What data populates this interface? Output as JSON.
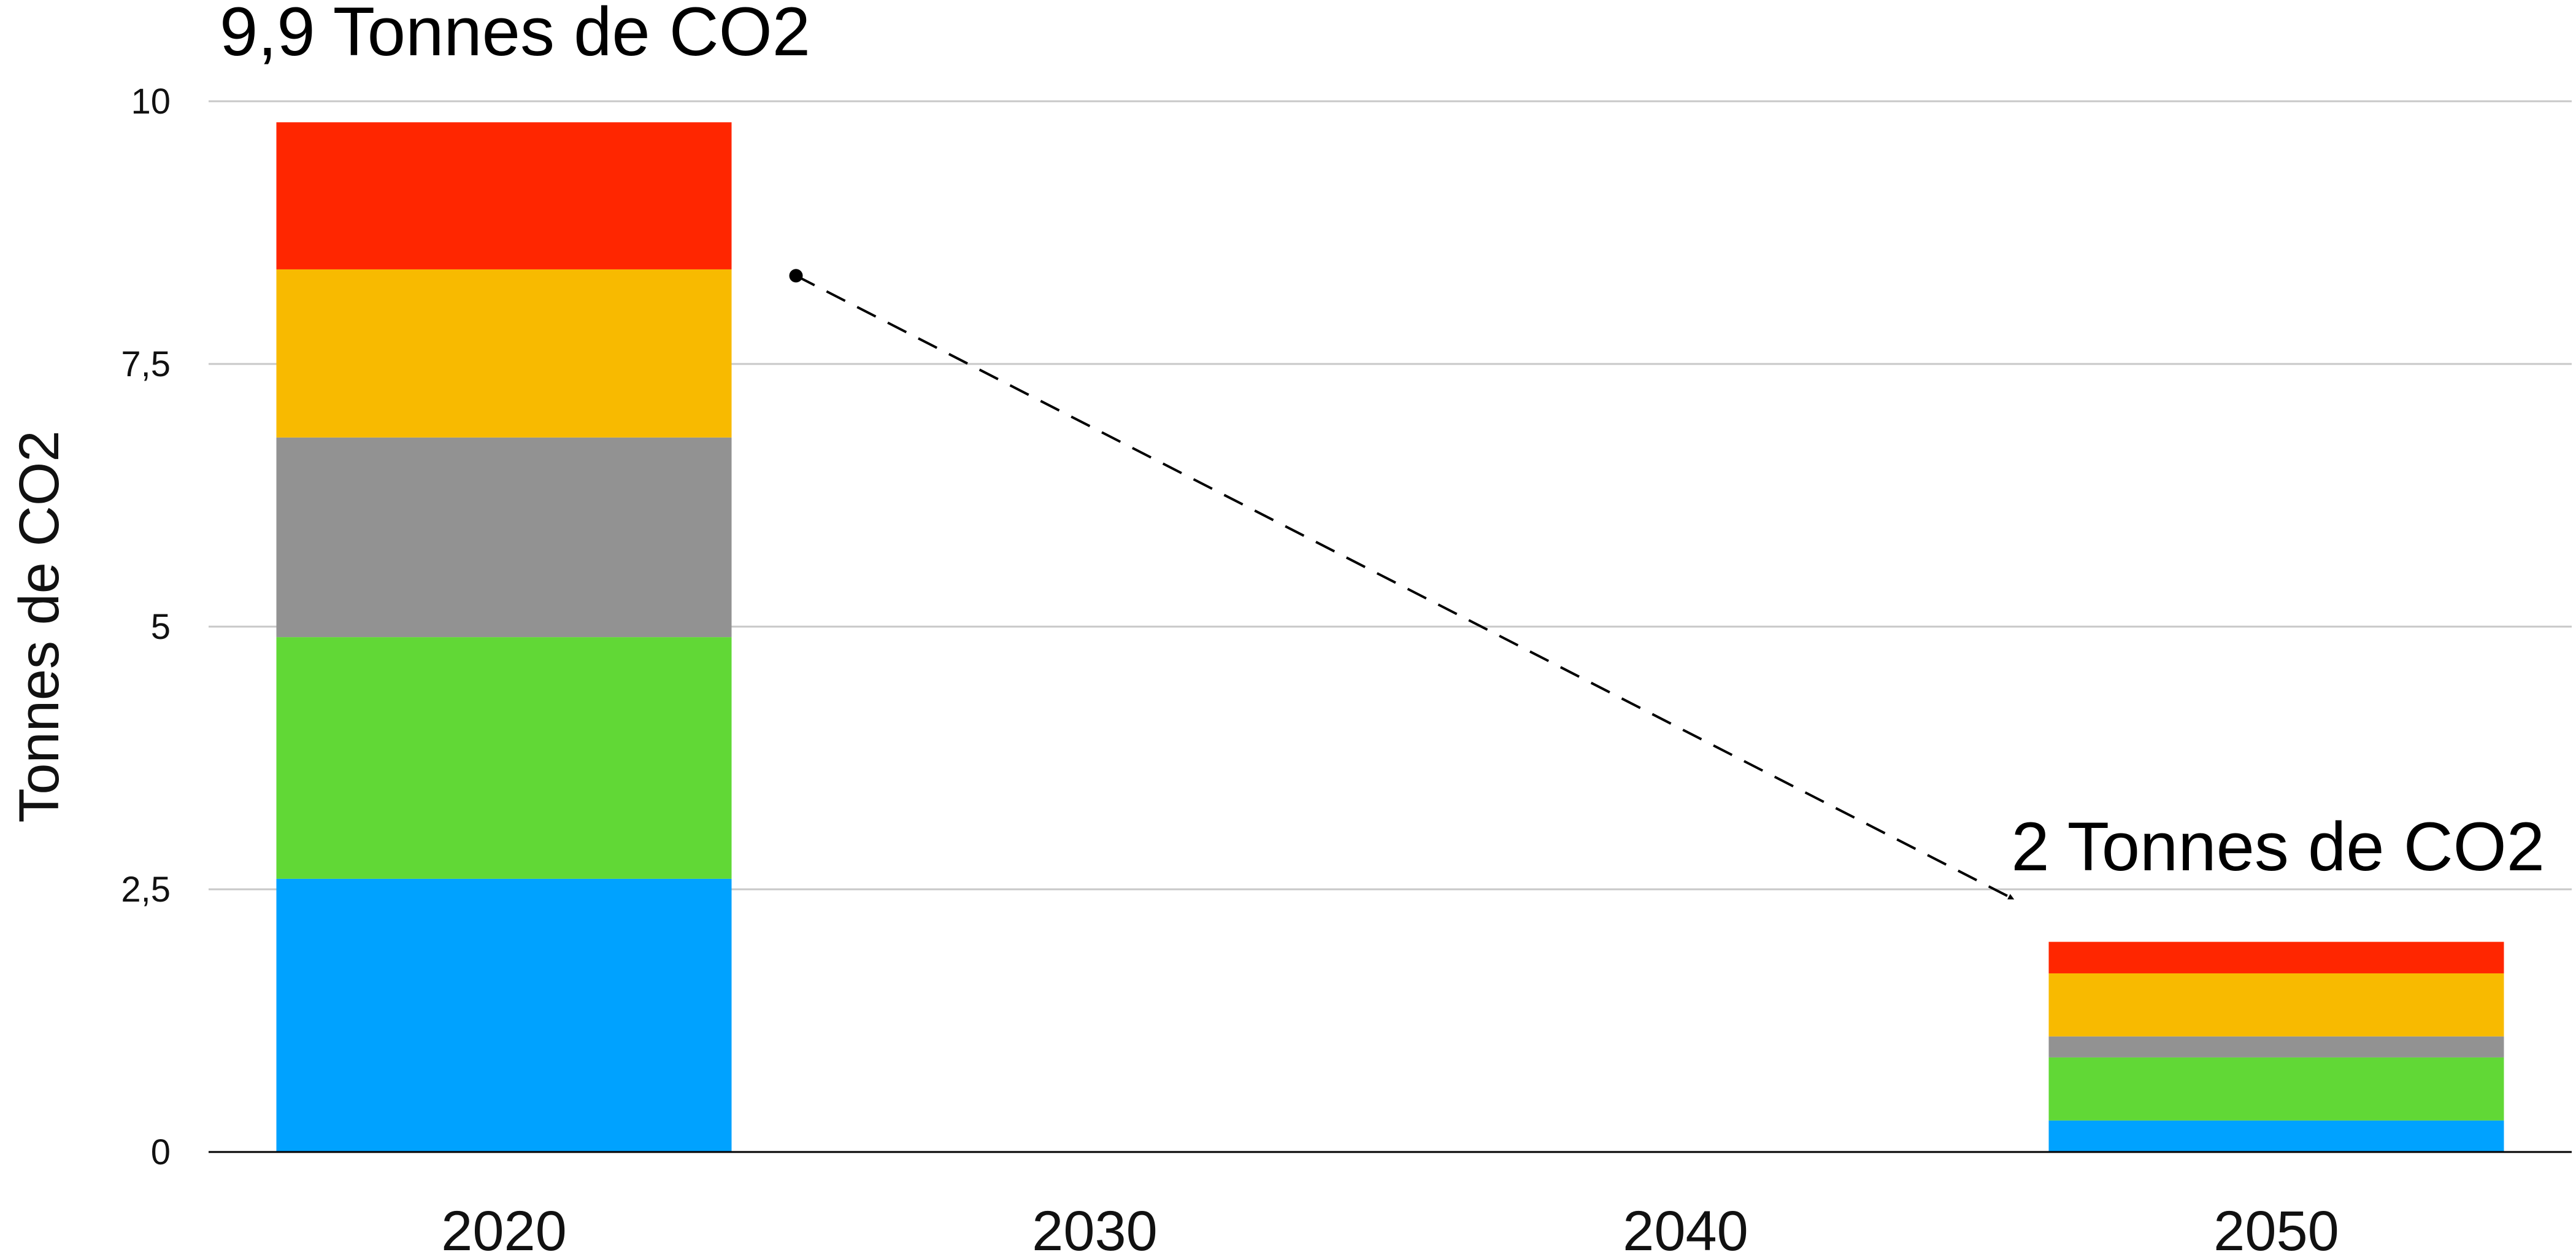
{
  "chart_data": {
    "type": "bar",
    "stacked": true,
    "categories": [
      "2020",
      "2030",
      "2040",
      "2050"
    ],
    "series": [
      {
        "color": "#00A2FF",
        "values": [
          2.6,
          0,
          0,
          0.3
        ]
      },
      {
        "color": "#61D836",
        "values": [
          2.3,
          0,
          0,
          0.6
        ]
      },
      {
        "color": "#929292",
        "values": [
          1.9,
          0,
          0,
          0.2
        ]
      },
      {
        "color": "#F8BA00",
        "values": [
          1.6,
          0,
          0,
          0.6
        ]
      },
      {
        "color": "#FF2600",
        "values": [
          1.4,
          0,
          0,
          0.3
        ]
      }
    ],
    "ylabel": "Tonnes de CO2",
    "ylim": [
      0,
      10
    ],
    "yticks": [
      0,
      2.5,
      5,
      7.5,
      10
    ],
    "ytick_labels": [
      "0",
      "2,5",
      "5",
      "7,5",
      "10"
    ],
    "grid": true,
    "annotations": [
      {
        "text": "9,9 Tonnes de CO2",
        "category": "2020"
      },
      {
        "text": "2 Tonnes de CO2",
        "category": "2050"
      }
    ],
    "trend_arrow": {
      "style": "dashed",
      "from_category": "2020",
      "to_category": "2050"
    }
  }
}
